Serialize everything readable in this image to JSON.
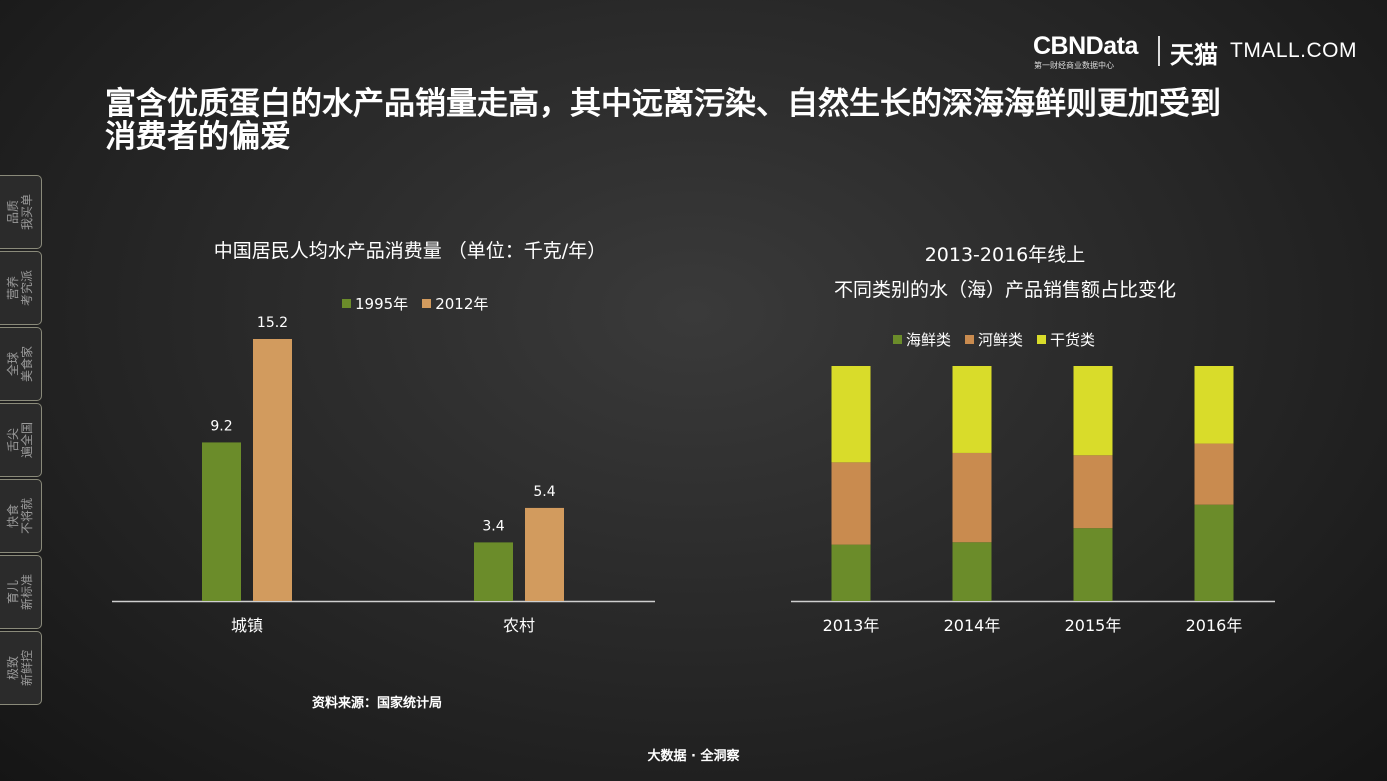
{
  "header": {
    "title": "富含优质蛋白的水产品销量走高，其中远离污染、自然生长的深海海鲜则更加受到消费者的偏爱",
    "logo_cbn": "CBNData",
    "logo_cbn_sub": "第一财经商业数据中心",
    "logo_tmall_cn": "天猫",
    "logo_tmall_en": "TMALL.COM"
  },
  "sidebar": {
    "tabs": [
      {
        "label": "品质\n我买单",
        "active": false
      },
      {
        "label": "营养\n考究派",
        "active": true
      },
      {
        "label": "全球\n美食家",
        "active": false
      },
      {
        "label": "舌尖\n遍全国",
        "active": false
      },
      {
        "label": "快食\n不将就",
        "active": false
      },
      {
        "label": "育儿\n新标准",
        "active": false
      },
      {
        "label": "极致\n新鲜控",
        "active": false
      }
    ]
  },
  "colors": {
    "green": "#6b8c2a",
    "tan": "#c98b4f",
    "tan2": "#d29b5e",
    "yellow": "#d9dc2a"
  },
  "chart_data": [
    {
      "type": "bar",
      "title": "中国居民人均水产品消费量 （单位：千克/年）",
      "categories": [
        "城镇",
        "农村"
      ],
      "series": [
        {
          "name": "1995年",
          "values": [
            9.2,
            3.4
          ],
          "value_labels": [
            "9.2",
            "3.4"
          ]
        },
        {
          "name": "2012年",
          "values": [
            15.2,
            5.4
          ],
          "value_labels": [
            "15.2",
            "5.4"
          ]
        }
      ],
      "ylim": [
        0,
        16
      ],
      "legend_position": "top"
    },
    {
      "type": "bar",
      "stacked": true,
      "title_line1": "2013-2016年线上",
      "title_line2": "不同类别的水（海）产品销售额占比变化",
      "categories": [
        "2013年",
        "2014年",
        "2015年",
        "2016年"
      ],
      "series": [
        {
          "name": "海鲜类",
          "values": [
            24,
            25,
            31,
            41
          ]
        },
        {
          "name": "河鲜类",
          "values": [
            35,
            38,
            31,
            26
          ]
        },
        {
          "name": "干货类",
          "values": [
            41,
            37,
            38,
            33
          ]
        }
      ],
      "unit": "percent",
      "ylim": [
        0,
        100
      ],
      "legend_position": "top"
    }
  ],
  "source": "资料来源：国家统计局",
  "footer": "大数据 · 全洞察"
}
